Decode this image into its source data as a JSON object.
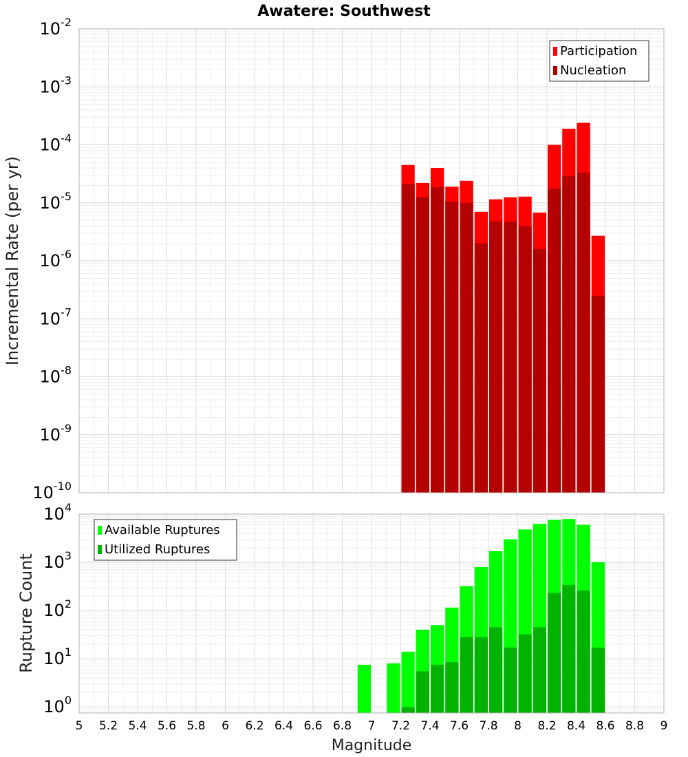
{
  "chart_data": [
    {
      "type": "bar",
      "title": "Awatere: Southwest",
      "ylabel": "Incremental Rate (per yr)",
      "xlabel": "",
      "xlim": [
        5,
        9
      ],
      "ylim": [
        1e-10,
        0.01
      ],
      "y_scale": "log",
      "bin_width": 0.1,
      "grid": true,
      "legend": "top-right",
      "x": [
        7.25,
        7.35,
        7.45,
        7.55,
        7.65,
        7.75,
        7.85,
        7.95,
        8.05,
        8.15,
        8.25,
        8.35,
        8.45,
        8.55
      ],
      "series": [
        {
          "name": "Participation",
          "color": "#ff0000",
          "values": [
            4.5e-05,
            2.2e-05,
            4e-05,
            1.9e-05,
            2.4e-05,
            7e-06,
            1.15e-05,
            1.25e-05,
            1.28e-05,
            6.8e-06,
            0.0001,
            0.00019,
            0.00024,
            2.7e-06
          ]
        },
        {
          "name": "Nucleation",
          "color": "#b30000",
          "values": [
            2.1e-05,
            1.25e-05,
            1.85e-05,
            1.05e-05,
            1e-05,
            2e-06,
            4.8e-06,
            4.7e-06,
            4e-06,
            1.6e-06,
            1.75e-05,
            2.9e-05,
            3.3e-05,
            2.5e-07
          ]
        }
      ]
    },
    {
      "type": "bar",
      "title": "",
      "ylabel": "Rupture Count",
      "xlabel": "Magnitude",
      "xlim": [
        5,
        9
      ],
      "ylim": [
        0.75,
        10000
      ],
      "y_scale": "log",
      "bin_width": 0.1,
      "grid": true,
      "legend": "top-left",
      "x_ticks": [
        "5",
        "5.2",
        "5.4",
        "5.6",
        "5.8",
        "6",
        "6.2",
        "6.4",
        "6.6",
        "6.8",
        "7",
        "7.2",
        "7.4",
        "7.6",
        "7.8",
        "8",
        "8.2",
        "8.4",
        "8.6",
        "8.8",
        "9"
      ],
      "series": [
        {
          "name": "Available Ruptures",
          "color": "#00ff00",
          "x": [
            6.95,
            7.15,
            7.25,
            7.35,
            7.45,
            7.55,
            7.65,
            7.75,
            7.85,
            7.95,
            8.05,
            8.15,
            8.25,
            8.35,
            8.45,
            8.55
          ],
          "values": [
            7.5,
            8,
            14,
            40,
            50,
            115,
            320,
            800,
            1700,
            3000,
            4800,
            6300,
            7600,
            7900,
            6000,
            1000
          ]
        },
        {
          "name": "Utilized Ruptures",
          "color": "#00b300",
          "x": [
            7.25,
            7.35,
            7.45,
            7.55,
            7.65,
            7.75,
            7.85,
            7.95,
            8.05,
            8.15,
            8.25,
            8.35,
            8.45,
            8.55
          ],
          "values": [
            1,
            5.5,
            7.5,
            8.5,
            28,
            28,
            45,
            17,
            32,
            45,
            230,
            340,
            260,
            17
          ]
        }
      ]
    }
  ]
}
